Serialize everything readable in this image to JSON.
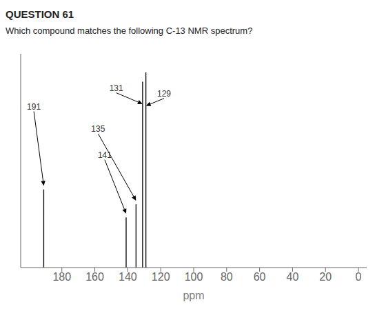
{
  "chart_data": {
    "type": "stem",
    "title": "QUESTION 61",
    "subtitle": "Which compound matches the following C-13 NMR spectrum?",
    "x_label": "ppm",
    "x": [
      191,
      141,
      135,
      131,
      129
    ],
    "values": [
      0.42,
      0.27,
      0.34,
      1.0,
      1.05
    ],
    "color": "#000000",
    "xlim": [
      205,
      -5
    ],
    "ylim": [
      0,
      1.15
    ],
    "xticks": [
      180,
      160,
      140,
      120,
      100,
      80,
      60,
      40,
      20,
      0
    ],
    "tick_labels": "x",
    "grid": false,
    "annotations": [
      {
        "text": "191",
        "x": 197,
        "y": 0.84,
        "arrow_x": 191,
        "arrow_y": 0.44
      },
      {
        "text": "135",
        "x": 158,
        "y": 0.72,
        "arrow_x": 135,
        "arrow_y": 0.36
      },
      {
        "text": "141",
        "x": 154,
        "y": 0.58,
        "arrow_x": 141,
        "arrow_y": 0.29
      },
      {
        "text": "131",
        "x": 147,
        "y": 0.94,
        "arrow_x": 131,
        "arrow_y": 0.88
      },
      {
        "text": "129",
        "x": 118,
        "y": 0.91,
        "arrow_x": 129,
        "arrow_y": 0.87
      }
    ]
  }
}
